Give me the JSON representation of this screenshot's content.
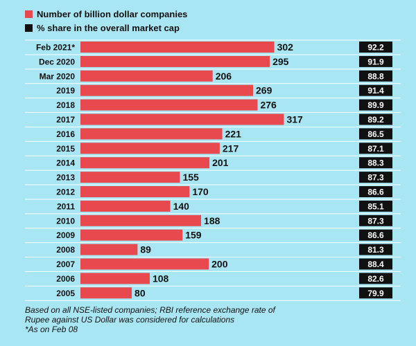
{
  "legend": {
    "count_label": "Number of billion dollar companies",
    "share_label": "% share in the overall market cap"
  },
  "colors": {
    "background": "#a9e6f3",
    "bar": "#e8494f",
    "share_box": "#111111",
    "grid": "#ffffff"
  },
  "chart_data": {
    "type": "bar",
    "orientation": "horizontal",
    "categories": [
      "Feb 2021*",
      "Dec 2020",
      "Mar 2020",
      "2019",
      "2018",
      "2017",
      "2016",
      "2015",
      "2014",
      "2013",
      "2012",
      "2011",
      "2010",
      "2009",
      "2008",
      "2007",
      "2006",
      "2005"
    ],
    "series": [
      {
        "name": "Number of billion dollar companies",
        "values": [
          302,
          295,
          206,
          269,
          276,
          317,
          221,
          217,
          201,
          155,
          170,
          140,
          188,
          159,
          89,
          200,
          108,
          80
        ]
      },
      {
        "name": "% share in the overall market cap",
        "values": [
          "92.2",
          "91.9",
          "88.8",
          "91.4",
          "89.9",
          "89.2",
          "86.5",
          "87.1",
          "88.3",
          "87.3",
          "86.6",
          "85.1",
          "87.3",
          "86.6",
          "81.3",
          "88.4",
          "82.6",
          "79.9"
        ]
      }
    ],
    "xlim": [
      0,
      350
    ]
  },
  "footnote": {
    "line1": "Based on all NSE-listed companies; RBI reference exchange rate of",
    "line2": "Rupee against US Dollar was considered for calculations",
    "line3": "*As on Feb 08"
  }
}
